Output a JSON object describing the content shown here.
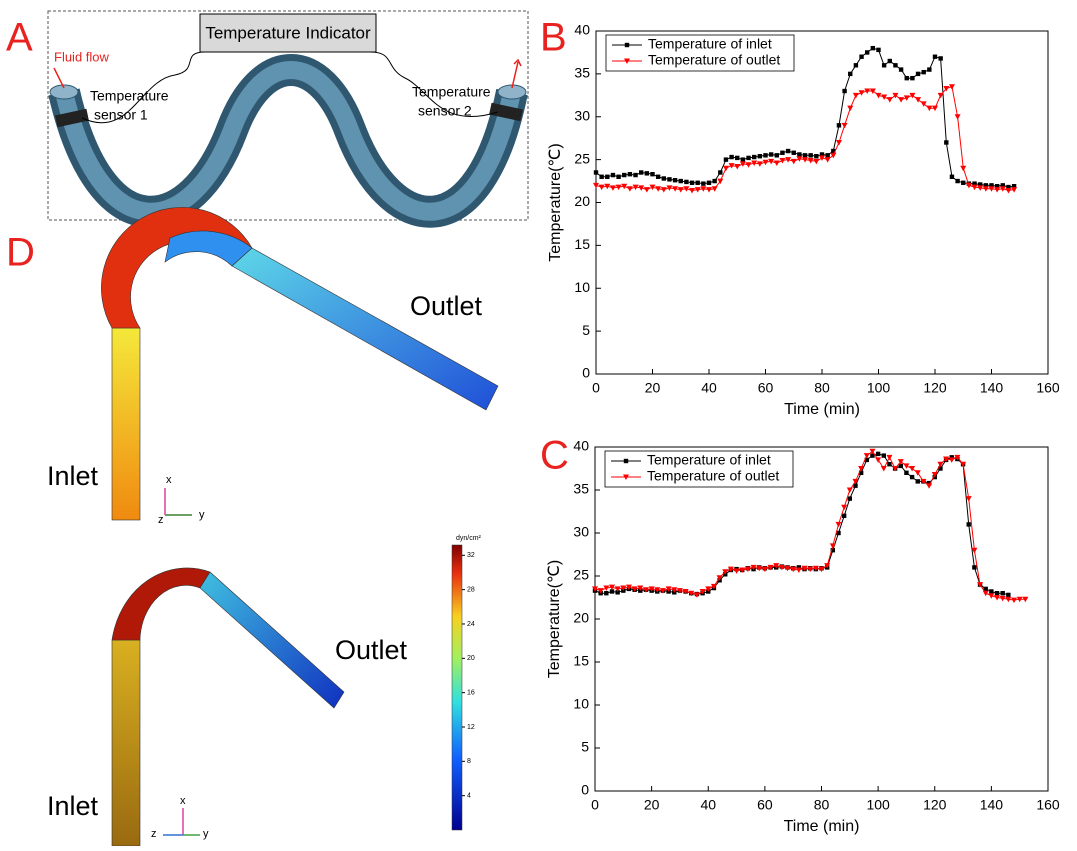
{
  "panel_labels": [
    "A",
    "B",
    "C",
    "D"
  ],
  "diagram_a": {
    "indicator": "Temperature Indicator",
    "flow": "Fluid flow",
    "sensor1": [
      "Temperature",
      "sensor 1"
    ],
    "sensor2": [
      "Temperature",
      "sensor 2"
    ]
  },
  "diagram_d": {
    "top": {
      "outlet": "Outlet",
      "inlet": "Inlet",
      "axes": [
        "x",
        "z",
        "y"
      ]
    },
    "bottom": {
      "outlet": "Outlet",
      "inlet": "Inlet",
      "axes": [
        "x",
        "z",
        "y"
      ]
    },
    "colorbar": {
      "unit": "dyn/cm²",
      "lim": [
        0,
        33.2
      ],
      "ticks": [
        32,
        28,
        24,
        20,
        16,
        12,
        8,
        4
      ]
    }
  },
  "chart_data": [
    {
      "type": "line",
      "x_label": "Time (min)",
      "y_label": "Temperature(℃)",
      "legend": "upper left",
      "xlim": [
        0,
        160
      ],
      "ylim": [
        0,
        40
      ],
      "xticks": [
        0,
        20,
        40,
        60,
        80,
        100,
        120,
        140,
        160
      ],
      "yticks": [
        0,
        5,
        10,
        15,
        20,
        25,
        30,
        35,
        40
      ],
      "x": [
        0,
        2,
        4,
        6,
        8,
        10,
        12,
        14,
        16,
        18,
        20,
        22,
        24,
        26,
        28,
        30,
        32,
        34,
        36,
        38,
        40,
        42,
        44,
        46,
        48,
        50,
        52,
        54,
        56,
        58,
        60,
        62,
        64,
        66,
        68,
        70,
        72,
        74,
        76,
        78,
        80,
        82,
        84,
        86,
        88,
        90,
        92,
        94,
        96,
        98,
        100,
        102,
        104,
        106,
        108,
        110,
        112,
        114,
        116,
        118,
        120,
        122,
        124,
        126,
        128,
        130,
        132,
        134,
        136,
        138,
        140,
        142,
        144,
        146,
        148
      ],
      "series": [
        {
          "name": "Temperature of inlet",
          "color": "#000000",
          "marker": "square",
          "values": [
            23.5,
            23,
            23,
            23.2,
            23,
            23.2,
            23.3,
            23.2,
            23.5,
            23.4,
            23.3,
            23,
            22.8,
            22.7,
            22.6,
            22.5,
            22.4,
            22.3,
            22.3,
            22.2,
            22.3,
            22.5,
            23.5,
            25,
            25.3,
            25.2,
            25,
            25.2,
            25.3,
            25.4,
            25.5,
            25.6,
            25.5,
            25.8,
            26,
            25.8,
            25.6,
            25.5,
            25.5,
            25.4,
            25.6,
            25.5,
            26,
            29,
            33,
            35,
            36,
            37,
            37.5,
            38,
            37.8,
            36,
            36.5,
            36,
            35.5,
            34.5,
            34.5,
            35,
            35.2,
            35.5,
            37,
            36.8,
            27,
            23,
            22.5,
            22.3,
            22.2,
            22.2,
            22.1,
            22,
            22,
            21.9,
            22,
            21.8,
            21.9
          ]
        },
        {
          "name": "Temperature of outlet",
          "color": "#ff0000",
          "marker": "triangle-down",
          "values": [
            22,
            21.8,
            21.9,
            21.7,
            21.8,
            21.9,
            21.6,
            21.8,
            21.7,
            21.5,
            21.8,
            21.6,
            21.5,
            21.7,
            21.6,
            21.5,
            21.6,
            21.4,
            21.5,
            21.6,
            21.5,
            21.6,
            22.5,
            24,
            24.3,
            24.2,
            24.5,
            24.4,
            24.6,
            24.5,
            24.7,
            24.8,
            24.6,
            24.9,
            25,
            24.8,
            25.1,
            25,
            24.9,
            24.8,
            25.2,
            25,
            25.5,
            27,
            29,
            31,
            32.5,
            32.8,
            33,
            33,
            32.5,
            32.3,
            32,
            32.5,
            32,
            32.2,
            32.5,
            32,
            31.5,
            31,
            31,
            32.5,
            33.3,
            33.5,
            30,
            24,
            22,
            21.8,
            21.7,
            21.6,
            21.6,
            21.5,
            21.6,
            21.4,
            21.5
          ]
        }
      ]
    },
    {
      "type": "line",
      "x_label": "Time (min)",
      "y_label": "Temperature(℃)",
      "legend": "upper left",
      "xlim": [
        0,
        160
      ],
      "ylim": [
        0,
        40
      ],
      "xticks": [
        0,
        20,
        40,
        60,
        80,
        100,
        120,
        140,
        160
      ],
      "yticks": [
        0,
        5,
        10,
        15,
        20,
        25,
        30,
        35,
        40
      ],
      "x": [
        0,
        2,
        4,
        6,
        8,
        10,
        12,
        14,
        16,
        18,
        20,
        22,
        24,
        26,
        28,
        30,
        32,
        34,
        36,
        38,
        40,
        42,
        44,
        46,
        48,
        50,
        52,
        54,
        56,
        58,
        60,
        62,
        64,
        66,
        68,
        70,
        72,
        74,
        76,
        78,
        80,
        82,
        84,
        86,
        88,
        90,
        92,
        94,
        96,
        98,
        100,
        102,
        104,
        106,
        108,
        110,
        112,
        114,
        116,
        118,
        120,
        122,
        124,
        126,
        128,
        130,
        132,
        134,
        136,
        138,
        140,
        142,
        144,
        146,
        148,
        150,
        152
      ],
      "series": [
        {
          "name": "Temperature of inlet",
          "color": "#000000",
          "marker": "square",
          "values": [
            23.3,
            23,
            23,
            23.2,
            23.1,
            23.3,
            23.5,
            23.4,
            23.3,
            23.4,
            23.3,
            23.2,
            23.3,
            23.2,
            23.1,
            23.3,
            23.2,
            23,
            22.9,
            23,
            23.2,
            23.6,
            24.5,
            25.2,
            25.7,
            25.8,
            25.7,
            25.9,
            25.8,
            26,
            25.9,
            26,
            26,
            26.1,
            26,
            25.9,
            26,
            25.8,
            25.9,
            25.8,
            25.9,
            26,
            28,
            30,
            32,
            34,
            35.5,
            37,
            38.5,
            39,
            39.2,
            39,
            38,
            37.5,
            37.8,
            37,
            36.5,
            36,
            36,
            35.8,
            36.5,
            37.5,
            38.5,
            38.8,
            38.6,
            38,
            31,
            26,
            24,
            23.5,
            23.2,
            23,
            23,
            22.8,
            null,
            null,
            null
          ]
        },
        {
          "name": "Temperature of outlet",
          "color": "#ff0000",
          "marker": "triangle-down",
          "values": [
            23.5,
            23.3,
            23.6,
            23.7,
            23.5,
            23.6,
            23.7,
            23.5,
            23.6,
            23.4,
            23.5,
            23.4,
            23.3,
            23.5,
            23.4,
            23.3,
            23.2,
            23,
            22.8,
            23.2,
            23.5,
            23.8,
            24.8,
            25.5,
            25.8,
            25.6,
            25.7,
            25.8,
            26,
            25.9,
            25.8,
            26,
            26.2,
            26,
            25.9,
            25.8,
            25.7,
            25.9,
            25.8,
            25.9,
            25.8,
            26.2,
            28.5,
            31,
            33,
            35,
            36,
            37.5,
            39,
            39.5,
            38.5,
            37.5,
            38.8,
            37.5,
            38.3,
            37.8,
            37.5,
            37,
            36,
            35.5,
            36.8,
            38,
            38.6,
            38.5,
            38.8,
            38,
            34,
            28,
            24,
            23,
            22.7,
            22.5,
            22.4,
            22.3,
            22.2,
            22.3,
            22.3
          ]
        }
      ]
    }
  ]
}
